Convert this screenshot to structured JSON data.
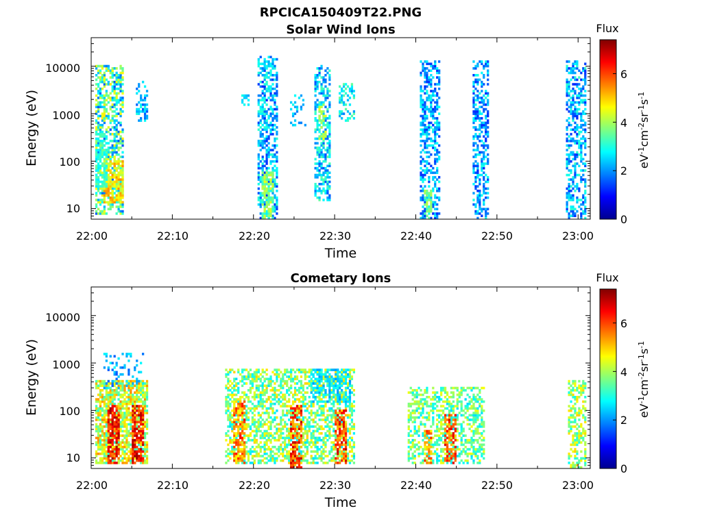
{
  "figure": {
    "title": "RPCICA150409T22.PNG"
  },
  "chart_data": [
    {
      "type": "heatmap",
      "title": "Solar Wind Ions",
      "xlabel": "Time",
      "ylabel": "Energy (eV)",
      "y_scale": "log",
      "ylim": [
        6,
        40000
      ],
      "x_tick_labels": [
        "22:00",
        "22:10",
        "22:20",
        "22:30",
        "22:40",
        "22:50",
        "23:00"
      ],
      "x_ticks_min": [
        0,
        10,
        20,
        30,
        40,
        50,
        60
      ],
      "xlim_min": [
        0,
        61.5
      ],
      "y_tick_labels": [
        "10",
        "100",
        "1000",
        "10000"
      ],
      "y_ticks": [
        10,
        100,
        1000,
        10000
      ],
      "colorbar": {
        "label_title": "Flux",
        "units": "eV-1cm-2sr-1s-1",
        "ticks": [
          "0",
          "2",
          "4",
          "6"
        ],
        "tick_values": [
          0,
          2,
          4,
          6
        ],
        "range": [
          0,
          7.4
        ],
        "colormap": "jet"
      },
      "grid": false,
      "clusters": [
        {
          "t0": 0.6,
          "t1": 3.9,
          "e0": 8,
          "e1": 10000,
          "f0": 1.5,
          "f1": 4.8,
          "density": 0.55
        },
        {
          "t0": 1.5,
          "t1": 3.8,
          "e0": 14,
          "e1": 100,
          "f0": 4.0,
          "f1": 5.5,
          "density": 0.7
        },
        {
          "t0": 0.6,
          "t1": 2.0,
          "e0": 30,
          "e1": 400,
          "f0": 2.6,
          "f1": 3.6,
          "density": 0.6
        },
        {
          "t0": 5.5,
          "t1": 6.8,
          "e0": 700,
          "e1": 4500,
          "f0": 1.5,
          "f1": 3.0,
          "density": 0.4
        },
        {
          "t0": 18.5,
          "t1": 19.5,
          "e0": 1500,
          "e1": 2500,
          "f0": 2.0,
          "f1": 3.0,
          "density": 0.6
        },
        {
          "t0": 20.5,
          "t1": 22.8,
          "e0": 6,
          "e1": 15000,
          "f0": 1.2,
          "f1": 3.2,
          "density": 0.5
        },
        {
          "t0": 21.0,
          "t1": 22.5,
          "e0": 6,
          "e1": 60,
          "f0": 3.0,
          "f1": 4.5,
          "density": 0.7
        },
        {
          "t0": 24.5,
          "t1": 26.5,
          "e0": 600,
          "e1": 2500,
          "f0": 1.8,
          "f1": 3.0,
          "density": 0.3
        },
        {
          "t0": 27.5,
          "t1": 29.5,
          "e0": 15,
          "e1": 10000,
          "f0": 1.5,
          "f1": 3.5,
          "density": 0.55
        },
        {
          "t0": 28.0,
          "t1": 29.0,
          "e0": 300,
          "e1": 1500,
          "f0": 3.5,
          "f1": 4.6,
          "density": 0.5
        },
        {
          "t0": 30.5,
          "t1": 32.5,
          "e0": 700,
          "e1": 4000,
          "f0": 1.8,
          "f1": 3.5,
          "density": 0.4
        },
        {
          "t0": 40.5,
          "t1": 42.8,
          "e0": 6,
          "e1": 12000,
          "f0": 1.2,
          "f1": 3.0,
          "density": 0.5
        },
        {
          "t0": 41.2,
          "t1": 42.0,
          "e0": 6,
          "e1": 25,
          "f0": 3.0,
          "f1": 4.2,
          "density": 0.6
        },
        {
          "t0": 47.0,
          "t1": 48.8,
          "e0": 6,
          "e1": 12000,
          "f0": 1.2,
          "f1": 3.0,
          "density": 0.5
        },
        {
          "t0": 58.5,
          "t1": 61.0,
          "e0": 6,
          "e1": 12000,
          "f0": 1.2,
          "f1": 3.2,
          "density": 0.5
        }
      ]
    },
    {
      "type": "heatmap",
      "title": "Cometary Ions",
      "xlabel": "Time",
      "ylabel": "Energy (eV)",
      "y_scale": "log",
      "ylim": [
        6,
        40000
      ],
      "x_tick_labels": [
        "22:00",
        "22:10",
        "22:20",
        "22:30",
        "22:40",
        "22:50",
        "23:00"
      ],
      "x_ticks_min": [
        0,
        10,
        20,
        30,
        40,
        50,
        60
      ],
      "xlim_min": [
        0,
        61.5
      ],
      "y_tick_labels": [
        "10",
        "100",
        "1000",
        "10000"
      ],
      "y_ticks": [
        10,
        100,
        1000,
        10000
      ],
      "colorbar": {
        "label_title": "Flux",
        "units": "eV-1cm-2sr-1s-1",
        "ticks": [
          "0",
          "2",
          "4",
          "6"
        ],
        "tick_values": [
          0,
          2,
          4,
          6
        ],
        "range": [
          0,
          7.4
        ],
        "colormap": "jet"
      },
      "grid": false,
      "clusters": [
        {
          "t0": 0.5,
          "t1": 6.8,
          "e0": 8,
          "e1": 400,
          "f0": 3.0,
          "f1": 5.5,
          "density": 0.75
        },
        {
          "t0": 2.0,
          "t1": 3.5,
          "e0": 8,
          "e1": 120,
          "f0": 5.5,
          "f1": 7.2,
          "density": 0.7
        },
        {
          "t0": 5.2,
          "t1": 6.5,
          "e0": 8,
          "e1": 120,
          "f0": 5.5,
          "f1": 7.2,
          "density": 0.7
        },
        {
          "t0": 1.5,
          "t1": 6.5,
          "e0": 300,
          "e1": 1500,
          "f0": 1.5,
          "f1": 2.8,
          "density": 0.2
        },
        {
          "t0": 16.5,
          "t1": 32.5,
          "e0": 8,
          "e1": 700,
          "f0": 2.5,
          "f1": 5.0,
          "density": 0.55
        },
        {
          "t0": 17.5,
          "t1": 19.0,
          "e0": 8,
          "e1": 150,
          "f0": 4.5,
          "f1": 6.5,
          "density": 0.6
        },
        {
          "t0": 24.5,
          "t1": 26.0,
          "e0": 6,
          "e1": 120,
          "f0": 5.0,
          "f1": 7.0,
          "density": 0.65
        },
        {
          "t0": 30.0,
          "t1": 31.5,
          "e0": 8,
          "e1": 100,
          "f0": 5.0,
          "f1": 7.0,
          "density": 0.55
        },
        {
          "t0": 27.0,
          "t1": 32.0,
          "e0": 150,
          "e1": 700,
          "f0": 2.0,
          "f1": 3.0,
          "density": 0.5
        },
        {
          "t0": 39.0,
          "t1": 48.5,
          "e0": 8,
          "e1": 300,
          "f0": 2.5,
          "f1": 4.6,
          "density": 0.5
        },
        {
          "t0": 43.5,
          "t1": 45.0,
          "e0": 8,
          "e1": 80,
          "f0": 5.0,
          "f1": 6.8,
          "density": 0.6
        },
        {
          "t0": 41.0,
          "t1": 42.0,
          "e0": 8,
          "e1": 40,
          "f0": 4.5,
          "f1": 6.2,
          "density": 0.55
        },
        {
          "t0": 58.8,
          "t1": 61.0,
          "e0": 6,
          "e1": 400,
          "f0": 2.8,
          "f1": 5.0,
          "density": 0.55
        }
      ]
    }
  ]
}
